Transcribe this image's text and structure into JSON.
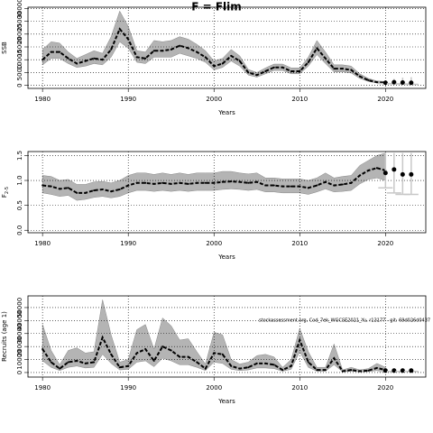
{
  "chart_data": [
    {
      "type": "line",
      "title": "F = Flim",
      "ylabel": "SSB",
      "xlabel": "Years",
      "x": [
        1980,
        1981,
        1982,
        1983,
        1984,
        1985,
        1986,
        1987,
        1988,
        1989,
        1990,
        1991,
        1992,
        1993,
        1994,
        1995,
        1996,
        1997,
        1998,
        1999,
        2000,
        2001,
        2002,
        2003,
        2004,
        2005,
        2006,
        2007,
        2008,
        2009,
        2010,
        2011,
        2012,
        2013,
        2014,
        2015,
        2016,
        2017,
        2018,
        2019,
        2020
      ],
      "values": [
        10000,
        13000,
        13000,
        10500,
        8500,
        9500,
        10500,
        10000,
        14000,
        22000,
        18000,
        11000,
        10500,
        13500,
        13500,
        14000,
        15500,
        14500,
        13000,
        11000,
        7500,
        8500,
        11500,
        9500,
        5000,
        4000,
        5500,
        7000,
        7000,
        5500,
        5500,
        9000,
        14500,
        10500,
        6500,
        6500,
        6000,
        3500,
        2000,
        1200,
        1000
      ],
      "lower": [
        8000,
        10500,
        10500,
        8500,
        7000,
        7500,
        8500,
        8000,
        11000,
        17000,
        14500,
        9000,
        8500,
        11000,
        11000,
        11000,
        12500,
        11500,
        10500,
        9000,
        6000,
        7000,
        9500,
        7500,
        4000,
        3200,
        4500,
        5800,
        5800,
        4500,
        4500,
        7500,
        12000,
        8500,
        5200,
        5300,
        4800,
        2700,
        1500,
        900,
        700
      ],
      "upper": [
        14000,
        17000,
        16500,
        13000,
        10500,
        12000,
        13500,
        12500,
        19000,
        29000,
        23000,
        13500,
        13000,
        17500,
        17000,
        17500,
        19000,
        18000,
        16000,
        13500,
        9500,
        10500,
        14000,
        11500,
        6200,
        5000,
        6800,
        8300,
        8300,
        6800,
        6800,
        11000,
        17500,
        13000,
        8000,
        8000,
        7500,
        4500,
        2700,
        1700,
        1500
      ],
      "forecast": {
        "x": [
          2020,
          2021,
          2022,
          2023
        ],
        "values": [
          1000,
          1200,
          1100,
          1000
        ],
        "lower": [
          700,
          600,
          500,
          400
        ],
        "upper": [
          1500,
          2500,
          3000,
          3200
        ]
      },
      "xlim": [
        1978.3,
        2024.7
      ],
      "ylim": [
        -1200,
        30500
      ],
      "xticks": [
        1980,
        1990,
        2000,
        2010,
        2020
      ],
      "yticks": [
        0,
        5000,
        10000,
        15000,
        20000,
        25000,
        30000
      ],
      "grid": true
    },
    {
      "type": "line",
      "ylabel": "F",
      "ylabel_sub": "2-5",
      "xlabel": "Years",
      "x": [
        1980,
        1981,
        1982,
        1983,
        1984,
        1985,
        1986,
        1987,
        1988,
        1989,
        1990,
        1991,
        1992,
        1993,
        1994,
        1995,
        1996,
        1997,
        1998,
        1999,
        2000,
        2001,
        2002,
        2003,
        2004,
        2005,
        2006,
        2007,
        2008,
        2009,
        2010,
        2011,
        2012,
        2013,
        2014,
        2015,
        2016,
        2017,
        2018,
        2019,
        2020
      ],
      "values": [
        0.9,
        0.88,
        0.83,
        0.85,
        0.75,
        0.75,
        0.8,
        0.82,
        0.78,
        0.82,
        0.9,
        0.95,
        0.95,
        0.93,
        0.95,
        0.93,
        0.95,
        0.93,
        0.95,
        0.95,
        0.95,
        0.97,
        0.98,
        0.97,
        0.95,
        0.97,
        0.9,
        0.9,
        0.88,
        0.88,
        0.88,
        0.85,
        0.9,
        0.97,
        0.9,
        0.92,
        0.95,
        1.1,
        1.2,
        1.25,
        1.2
      ],
      "lower": [
        0.75,
        0.72,
        0.68,
        0.7,
        0.6,
        0.62,
        0.66,
        0.68,
        0.65,
        0.68,
        0.75,
        0.8,
        0.8,
        0.78,
        0.8,
        0.78,
        0.8,
        0.78,
        0.8,
        0.8,
        0.8,
        0.82,
        0.83,
        0.82,
        0.8,
        0.82,
        0.77,
        0.77,
        0.75,
        0.75,
        0.75,
        0.72,
        0.77,
        0.83,
        0.77,
        0.78,
        0.8,
        0.93,
        1.02,
        1.05,
        1.0
      ],
      "upper": [
        1.1,
        1.08,
        1.0,
        1.02,
        0.92,
        0.92,
        0.97,
        0.98,
        0.95,
        1.0,
        1.1,
        1.15,
        1.15,
        1.12,
        1.15,
        1.12,
        1.15,
        1.12,
        1.15,
        1.15,
        1.15,
        1.18,
        1.18,
        1.15,
        1.13,
        1.15,
        1.05,
        1.05,
        1.03,
        1.03,
        1.03,
        1.0,
        1.05,
        1.15,
        1.05,
        1.08,
        1.1,
        1.3,
        1.4,
        1.5,
        1.55
      ],
      "forecast": {
        "x": [
          2020,
          2021,
          2022,
          2023
        ],
        "values": [
          1.15,
          1.22,
          1.12,
          1.12
        ],
        "lower": [
          0.85,
          0.75,
          0.72,
          0.72
        ],
        "upper": [
          1.55,
          1.55,
          1.55,
          1.55
        ]
      },
      "xlim": [
        1978.3,
        2024.7
      ],
      "ylim": [
        -0.05,
        1.58
      ],
      "xticks": [
        1980,
        1990,
        2000,
        2010,
        2020
      ],
      "yticks": [
        {
          "value": 0,
          "label": "0.0"
        },
        {
          "value": 0.5,
          "label": "0.5"
        },
        {
          "value": 1,
          "label": "1.0"
        },
        {
          "value": 1.5,
          "label": "1.5"
        }
      ],
      "grid": true
    },
    {
      "type": "line",
      "ylabel": "Recruits (age 1)",
      "xlabel": "Years",
      "annotation": "stockassessment.org, Cod_7ek_WGCSE2021_Yu, r13177 - git: 69d026d0437",
      "x": [
        1980,
        1981,
        1982,
        1983,
        1984,
        1985,
        1986,
        1987,
        1988,
        1989,
        1990,
        1991,
        1992,
        1993,
        1994,
        1995,
        1996,
        1997,
        1998,
        1999,
        2000,
        2001,
        2002,
        2003,
        2004,
        2005,
        2006,
        2007,
        2008,
        2009,
        2010,
        2011,
        2012,
        2013,
        2014,
        2015,
        2016,
        2017,
        2018,
        2019,
        2020
      ],
      "values": [
        18000,
        8000,
        3000,
        8000,
        9000,
        7000,
        8000,
        27000,
        14000,
        4000,
        5000,
        15000,
        18000,
        9000,
        20000,
        17000,
        12000,
        12000,
        8000,
        3000,
        15000,
        14000,
        5000,
        3000,
        4000,
        7000,
        7000,
        6000,
        2000,
        5000,
        25000,
        8000,
        2000,
        2000,
        11000,
        1000,
        2000,
        1000,
        1500,
        3500,
        2000
      ],
      "lower": [
        9000,
        4000,
        1500,
        4000,
        5000,
        3500,
        4000,
        14000,
        7000,
        2000,
        2500,
        8000,
        9000,
        4500,
        11000,
        9000,
        6000,
        6000,
        4000,
        1500,
        8000,
        7000,
        2500,
        1500,
        2000,
        3500,
        3500,
        3000,
        1000,
        2500,
        16000,
        4000,
        1000,
        1000,
        6000,
        500,
        1000,
        500,
        700,
        1500,
        800
      ],
      "upper": [
        37000,
        17000,
        6000,
        17000,
        19000,
        15000,
        16000,
        56000,
        29000,
        8000,
        10000,
        33000,
        37000,
        18000,
        42000,
        36000,
        25000,
        26000,
        16000,
        6500,
        31000,
        29000,
        10000,
        6500,
        8000,
        13000,
        14000,
        12000,
        4000,
        10000,
        34000,
        16000,
        4000,
        4000,
        22000,
        2000,
        4000,
        2000,
        3000,
        7000,
        4000
      ],
      "forecast": {
        "x": [
          2020,
          2021,
          2022,
          2023
        ],
        "values": [
          1500,
          1500,
          1500,
          1500
        ],
        "lower": [
          800,
          800,
          800,
          800
        ],
        "upper": [
          3000,
          3000,
          3000,
          3000
        ]
      },
      "xlim": [
        1978.3,
        2024.7
      ],
      "ylim": [
        -3500,
        59000
      ],
      "xticks": [
        1980,
        1990,
        2000,
        2010,
        2020
      ],
      "yticks": [
        0,
        10000,
        20000,
        30000,
        40000,
        50000
      ],
      "grid": true
    }
  ]
}
